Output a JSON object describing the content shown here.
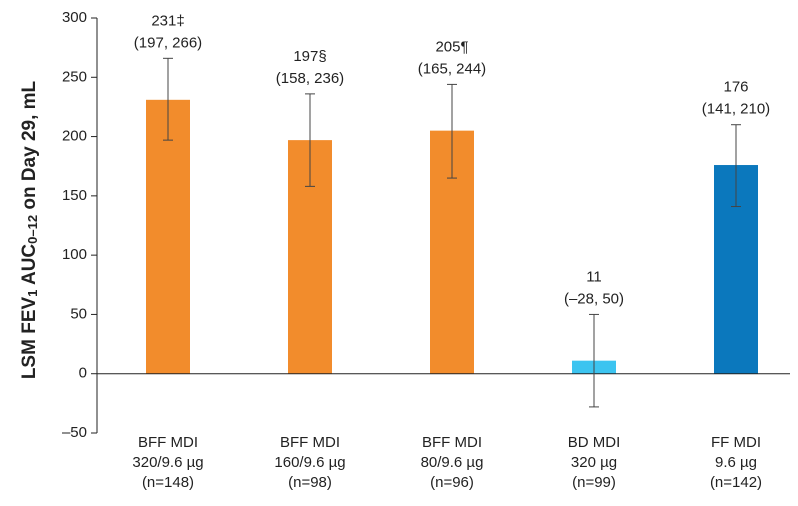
{
  "chart_data": {
    "type": "bar",
    "ylabel": [
      "LSM FEV",
      "1",
      " AUC",
      "0–12",
      " on Day 29, mL"
    ],
    "categories": [
      [
        "BFF MDI",
        "320/9.6 µg",
        "(n=148)"
      ],
      [
        "BFF MDI",
        "160/9.6 µg",
        "(n=98)"
      ],
      [
        "BFF MDI",
        "80/9.6 µg",
        "(n=96)"
      ],
      [
        "BD MDI",
        "320 µg",
        "(n=99)"
      ],
      [
        "FF MDI",
        "9.6 µg",
        "(n=142)"
      ]
    ],
    "values": [
      231,
      197,
      205,
      11,
      176
    ],
    "value_labels": [
      "231‡",
      "197§",
      "205¶",
      "11",
      "176"
    ],
    "error_low": [
      197,
      158,
      165,
      -28,
      141
    ],
    "error_high": [
      266,
      236,
      244,
      50,
      210
    ],
    "ci_labels": [
      "(197, 266)",
      "(158, 236)",
      "(165, 244)",
      "(–28, 50)",
      "(141, 210)"
    ],
    "colors": [
      "#f28c2c",
      "#f28c2c",
      "#f28c2c",
      "#3cc4f0",
      "#0b78bd"
    ],
    "ylim": [
      -50,
      300
    ],
    "yticks": [
      {
        "value": -50,
        "label": "–50"
      },
      0,
      50,
      100,
      150,
      200,
      250,
      300
    ]
  }
}
